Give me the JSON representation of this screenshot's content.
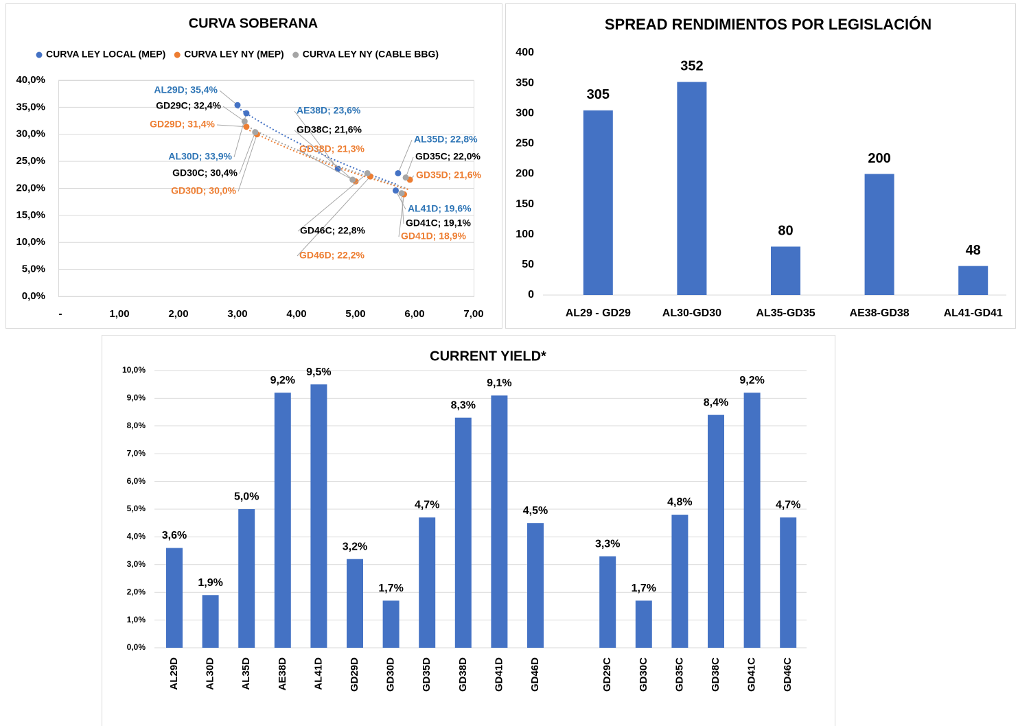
{
  "chart_data": [
    {
      "type": "scatter",
      "title": "CURVA SOBERANA",
      "legend": "top",
      "grid": true,
      "xlim": [
        0,
        7
      ],
      "xticks": [
        {
          "value": 0,
          "label": "-"
        },
        {
          "value": 1,
          "label": "1,00"
        },
        {
          "value": 2,
          "label": "2,00"
        },
        {
          "value": 3,
          "label": "3,00"
        },
        {
          "value": 4,
          "label": "4,00"
        },
        {
          "value": 5,
          "label": "5,00"
        },
        {
          "value": 6,
          "label": "6,00"
        },
        {
          "value": 7,
          "label": "7,00"
        }
      ],
      "ylim": [
        0,
        40
      ],
      "yticks": [
        {
          "value": 0,
          "label": "0,0%"
        },
        {
          "value": 5,
          "label": "5,0%"
        },
        {
          "value": 10,
          "label": "10,0%"
        },
        {
          "value": 15,
          "label": "15,0%"
        },
        {
          "value": 20,
          "label": "20,0%"
        },
        {
          "value": 25,
          "label": "25,0%"
        },
        {
          "value": 30,
          "label": "30,0%"
        },
        {
          "value": 35,
          "label": "35,0%"
        },
        {
          "value": 40,
          "label": "40,0%"
        }
      ],
      "series": [
        {
          "name": "CURVA LEY LOCAL (MEP)",
          "color": "#4472c4",
          "label_color": "#2e75b6",
          "x": [
            3.0,
            3.15,
            4.7,
            5.72,
            5.68
          ],
          "values": [
            35.4,
            33.9,
            23.6,
            22.8,
            19.6
          ],
          "value_labels": [
            "AL29D; 35,4%",
            "AL30D; 33,9%",
            "AE38D; 23,6%",
            "AL35D; 22,8%",
            "AL41D; 19,6%"
          ]
        },
        {
          "name": "CURVA LEY NY (MEP)",
          "color": "#ed7d31",
          "label_color": "#ed7d31",
          "x": [
            3.15,
            3.33,
            5.0,
            5.92,
            5.82,
            5.25
          ],
          "values": [
            31.4,
            30.0,
            21.3,
            21.6,
            18.9,
            22.2
          ],
          "value_labels": [
            "GD29D; 31,4%",
            "GD30D; 30,0%",
            "GD38D; 21,3%",
            "GD35D; 21,6%",
            "GD41D; 18,9%",
            "GD46D; 22,2%"
          ]
        },
        {
          "name": "CURVA LEY NY (CABLE BBG)",
          "color": "#a5a5a5",
          "label_color": "#000000",
          "x": [
            3.12,
            3.3,
            4.95,
            5.85,
            5.78,
            5.2
          ],
          "values": [
            32.4,
            30.4,
            21.6,
            22.0,
            19.1,
            22.8
          ],
          "value_labels": [
            "GD29C; 32,4%",
            "GD30C; 30,4%",
            "GD38C; 21,6%",
            "GD35C; 22,0%",
            "GD41C; 19,1%",
            "GD46C; 22,8%"
          ]
        }
      ]
    },
    {
      "type": "bar",
      "title": "SPREAD RENDIMIENTOS POR LEGISLACIÓN",
      "color": "#4472c4",
      "grid": false,
      "categories": [
        "AL29 - GD29",
        "AL30-GD30",
        "AL35-GD35",
        "AE38-GD38",
        "AL41-GD41"
      ],
      "values": [
        305,
        352,
        80,
        200,
        48
      ],
      "ylim": [
        0,
        400
      ],
      "yticks": [
        0,
        50,
        100,
        150,
        200,
        250,
        300,
        350,
        400
      ]
    },
    {
      "type": "bar",
      "title": "CURRENT YIELD*",
      "color": "#4472c4",
      "grid": true,
      "categories": [
        "AL29D",
        "AL30D",
        "AL35D",
        "AE38D",
        "AL41D",
        "GD29D",
        "GD30D",
        "GD35D",
        "GD38D",
        "GD41D",
        "GD46D",
        null,
        "GD29C",
        "GD30C",
        "GD35C",
        "GD38C",
        "GD41C",
        "GD46C"
      ],
      "values": [
        3.6,
        1.9,
        5.0,
        9.2,
        9.5,
        3.2,
        1.7,
        4.7,
        8.3,
        9.1,
        4.5,
        null,
        3.3,
        1.7,
        4.8,
        8.4,
        9.2,
        4.7
      ],
      "value_labels": [
        "3,6%",
        "1,9%",
        "5,0%",
        "9,2%",
        "9,5%",
        "3,2%",
        "1,7%",
        "4,7%",
        "8,3%",
        "9,1%",
        "4,5%",
        null,
        "3,3%",
        "1,7%",
        "4,8%",
        "8,4%",
        "9,2%",
        "4,7%"
      ],
      "ylim": [
        0,
        10
      ],
      "yticks": [
        {
          "value": 0,
          "label": "0,0%"
        },
        {
          "value": 1,
          "label": "1,0%"
        },
        {
          "value": 2,
          "label": "2,0%"
        },
        {
          "value": 3,
          "label": "3,0%"
        },
        {
          "value": 4,
          "label": "4,0%"
        },
        {
          "value": 5,
          "label": "5,0%"
        },
        {
          "value": 6,
          "label": "6,0%"
        },
        {
          "value": 7,
          "label": "7,0%"
        },
        {
          "value": 8,
          "label": "8,0%"
        },
        {
          "value": 9,
          "label": "9,0%"
        },
        {
          "value": 10,
          "label": "10,0%"
        }
      ]
    }
  ]
}
